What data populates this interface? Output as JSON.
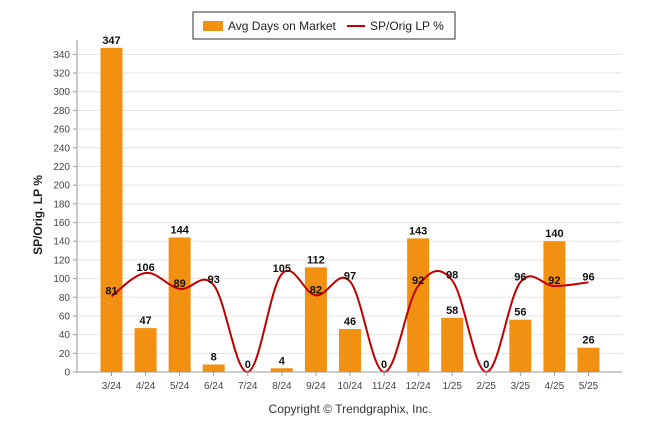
{
  "legend": {
    "bar_label": "Avg Days on Market",
    "line_label": "SP/Orig LP %"
  },
  "footer": {
    "copyright": "Copyright © Trendgraphix, Inc."
  },
  "colors": {
    "bar": "#f29111",
    "line": "#c00000",
    "grid": "#e6e6e6",
    "axis": "#999999"
  },
  "chart_data": {
    "type": "bar",
    "categories": [
      "3/24",
      "4/24",
      "5/24",
      "6/24",
      "7/24",
      "8/24",
      "9/24",
      "10/24",
      "11/24",
      "12/24",
      "1/25",
      "2/25",
      "3/25",
      "4/25",
      "5/25"
    ],
    "series": [
      {
        "name": "Avg Days on Market",
        "type": "bar",
        "values": [
          347,
          47,
          144,
          8,
          0,
          4,
          112,
          46,
          0,
          143,
          58,
          0,
          56,
          140,
          26
        ]
      },
      {
        "name": "SP/Orig LP %",
        "type": "line",
        "values": [
          81,
          106,
          89,
          93,
          0,
          105,
          82,
          97,
          0,
          92,
          98,
          0,
          96,
          92,
          96
        ]
      }
    ],
    "ylabel": "SP/Orig. LP %",
    "ylim": [
      0,
      350
    ],
    "yticks": [
      0,
      20,
      40,
      60,
      80,
      100,
      120,
      140,
      160,
      180,
      200,
      220,
      240,
      260,
      280,
      300,
      320,
      340
    ],
    "grid": true,
    "legend_position": "top-center"
  }
}
